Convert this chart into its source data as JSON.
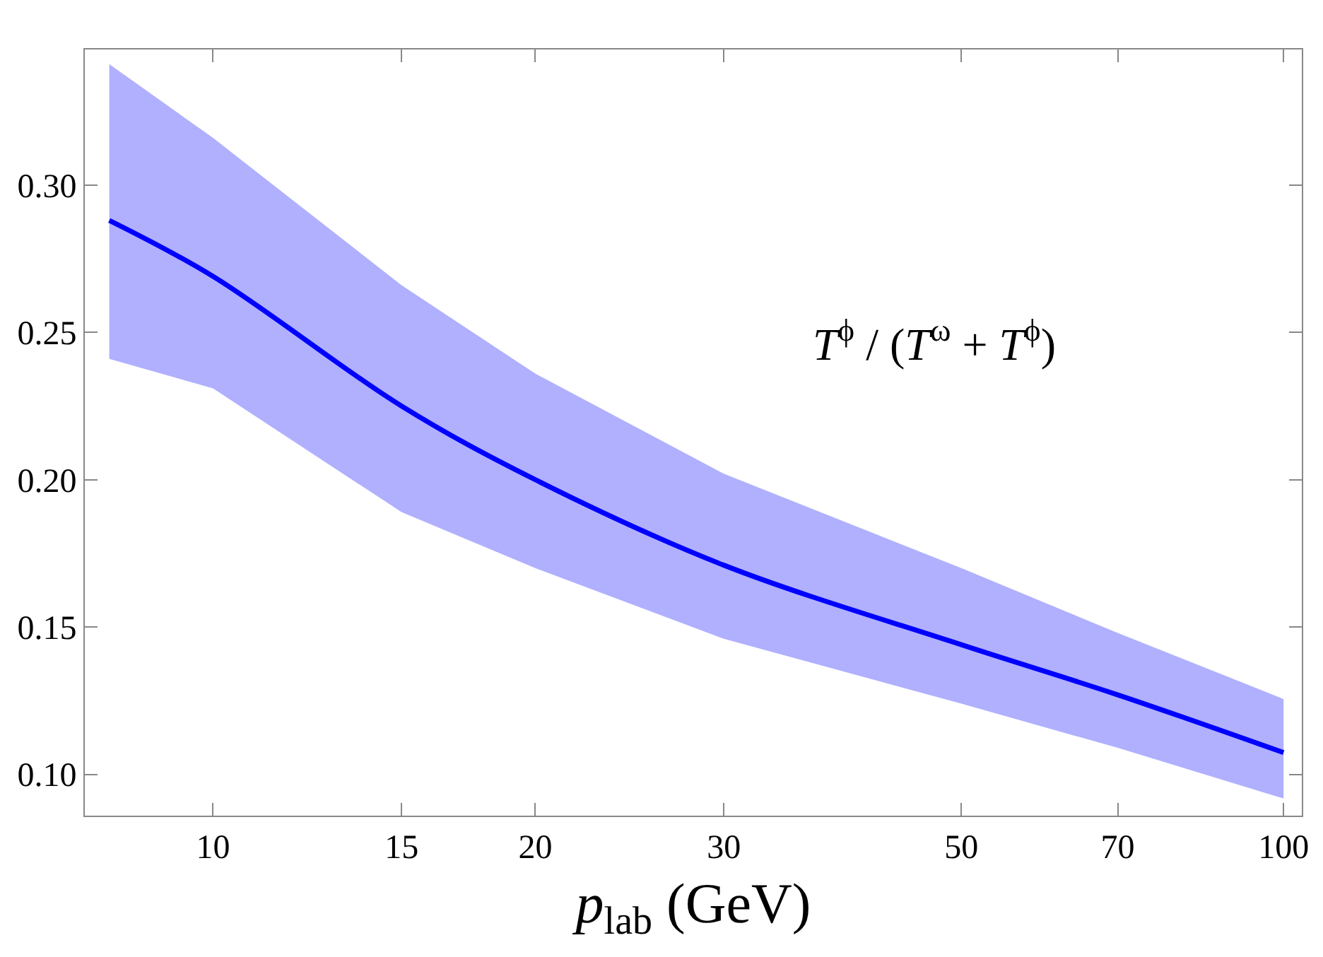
{
  "chart_data": {
    "type": "line",
    "xlabel": "p$_{lab}$ (GeV)",
    "log": "x",
    "grid": false,
    "marker": "none",
    "line_style": "solid",
    "xlim": [
      7.59,
      104
    ],
    "ylim": [
      0.086,
      0.346
    ],
    "xticks": [
      10,
      15,
      20,
      30,
      50,
      70,
      100
    ],
    "yticks": [
      {
        "value": 0.1,
        "label": "0.10"
      },
      {
        "value": 0.15,
        "label": "0.15"
      },
      {
        "value": 0.2,
        "label": "0.20"
      },
      {
        "value": 0.25,
        "label": "0.25"
      },
      {
        "value": 0.3,
        "label": "0.30"
      }
    ],
    "annotations": [
      "T$^{ϕ}$ / (T$^{ω}$ + T$^{ϕ}$)"
    ],
    "series": [
      {
        "color": "#0000ff",
        "x": [
          8,
          10,
          15,
          20,
          30,
          50,
          70,
          100
        ],
        "values": [
          0.288,
          0.269,
          0.225,
          0.2,
          0.171,
          0.144,
          0.127,
          0.1074
        ],
        "upper": [
          0.341,
          0.316,
          0.266,
          0.236,
          0.202,
          0.17,
          0.148,
          0.1256
        ],
        "lower": [
          0.241,
          0.231,
          0.189,
          0.17,
          0.146,
          0.124,
          0.109,
          0.0918
        ]
      }
    ]
  }
}
